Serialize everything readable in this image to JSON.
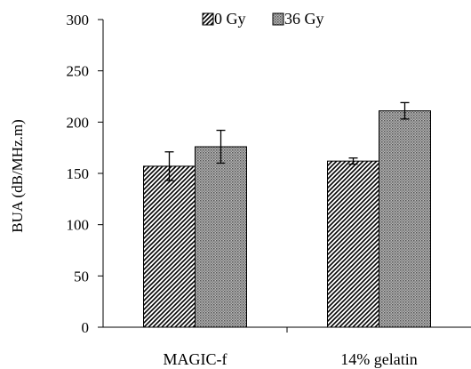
{
  "chart_data": {
    "type": "bar",
    "title": "",
    "xlabel": "",
    "ylabel": "BUA (dB/MHz.m)",
    "ylim": [
      0,
      300
    ],
    "yticks": [
      0,
      50,
      100,
      150,
      200,
      250,
      300
    ],
    "grid": false,
    "legend_position": "top",
    "categories": [
      "MAGIC-f",
      "14% gelatin"
    ],
    "series": [
      {
        "name": "0 Gy",
        "values": [
          157,
          162
        ],
        "errors": [
          14,
          3
        ],
        "pattern": "diagonal-hatch"
      },
      {
        "name": "36 Gy",
        "values": [
          176,
          211
        ],
        "errors": [
          16,
          8
        ],
        "pattern": "dense-dots"
      }
    ]
  }
}
